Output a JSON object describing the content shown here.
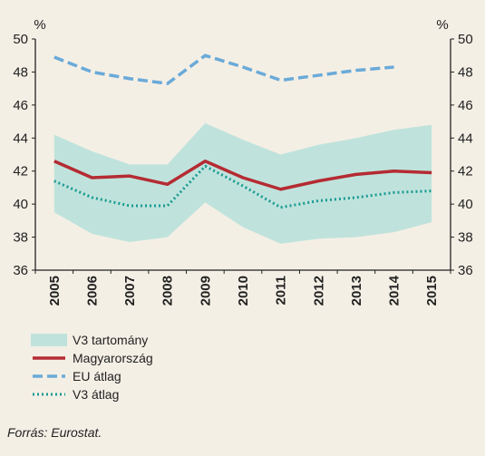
{
  "chart_data": {
    "type": "line",
    "x": [
      2005,
      2006,
      2007,
      2008,
      2009,
      2010,
      2011,
      2012,
      2013,
      2014,
      2015
    ],
    "ylim": [
      36,
      50
    ],
    "yticks": [
      36,
      38,
      40,
      42,
      44,
      46,
      48,
      50
    ],
    "ylabel_left": "%",
    "ylabel_right": "%",
    "grid": false,
    "legend_position": "bottom-left",
    "band": {
      "name": "V3 tartomány",
      "lower": [
        39.5,
        38.2,
        37.7,
        38.0,
        40.1,
        38.6,
        37.6,
        37.9,
        38.0,
        38.3,
        38.9
      ],
      "upper": [
        44.2,
        43.2,
        42.4,
        42.4,
        44.9,
        43.9,
        43.0,
        43.6,
        44.0,
        44.5,
        44.8
      ],
      "color": "#bfe3dc"
    },
    "series": [
      {
        "name": "Magyarország",
        "style": "solid",
        "color": "#b52b33",
        "values": [
          42.6,
          41.6,
          41.7,
          41.2,
          42.6,
          41.6,
          40.9,
          41.4,
          41.8,
          42.0,
          41.9
        ]
      },
      {
        "name": "EU átlag",
        "style": "dashed",
        "color": "#6aaad8",
        "values": [
          48.9,
          48.0,
          47.6,
          47.3,
          49.0,
          48.3,
          47.5,
          47.8,
          48.1,
          48.3,
          null
        ]
      },
      {
        "name": "V3 átlag",
        "style": "dotted",
        "color": "#1a9a93",
        "values": [
          41.4,
          40.4,
          39.9,
          39.9,
          42.3,
          41.1,
          39.8,
          40.2,
          40.4,
          40.7,
          40.8
        ]
      }
    ]
  },
  "source": "Forrás: Eurostat."
}
